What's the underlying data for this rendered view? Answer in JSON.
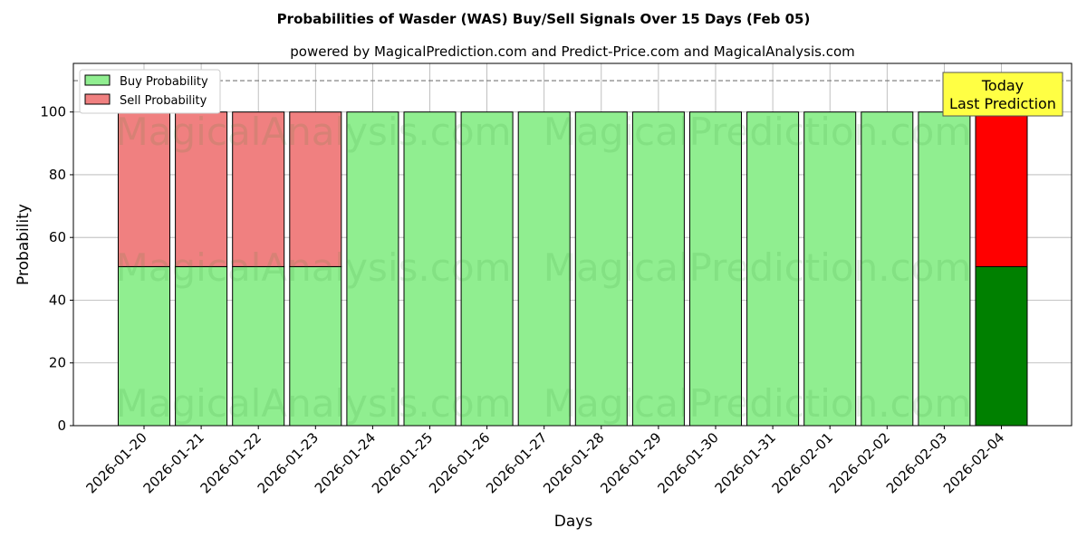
{
  "chart_data": {
    "type": "bar",
    "stacked": true,
    "title": "Probabilities of Wasder (WAS) Buy/Sell Signals Over 15 Days (Feb 05)",
    "subtitle": "powered by MagicalPrediction.com and Predict-Price.com and MagicalAnalysis.com",
    "xlabel": "Days",
    "ylabel": "Probability",
    "ylim": [
      0,
      115.5
    ],
    "yticks": [
      0,
      20,
      40,
      60,
      80,
      100
    ],
    "grid": true,
    "legend_position": "top-left",
    "reference_line": 110,
    "categories": [
      "2026-01-20",
      "2026-01-21",
      "2026-01-22",
      "2026-01-23",
      "2026-01-24",
      "2026-01-25",
      "2026-01-26",
      "2026-01-27",
      "2026-01-28",
      "2026-01-29",
      "2026-01-30",
      "2026-01-31",
      "2026-02-01",
      "2026-02-02",
      "2026-02-03",
      "2026-02-04"
    ],
    "series": [
      {
        "name": "Buy Probability",
        "color": "#90ee90",
        "highlight_color": "#008000",
        "values": [
          50.7,
          50.7,
          50.7,
          50.7,
          100,
          100,
          100,
          100,
          100,
          100,
          100,
          100,
          100,
          100,
          100,
          50.7
        ]
      },
      {
        "name": "Sell Probability",
        "color": "#f08080",
        "highlight_color": "#ff0000",
        "values": [
          49.3,
          49.3,
          49.3,
          49.3,
          0,
          0,
          0,
          0,
          0,
          0,
          0,
          0,
          0,
          0,
          0,
          49.3
        ]
      }
    ],
    "annotation": {
      "line1": "Today",
      "line2": "Last Prediction",
      "color": "#ffff44"
    },
    "watermarks": [
      "MagicalAnalysis.com",
      "MagicalPrediction.com"
    ]
  }
}
